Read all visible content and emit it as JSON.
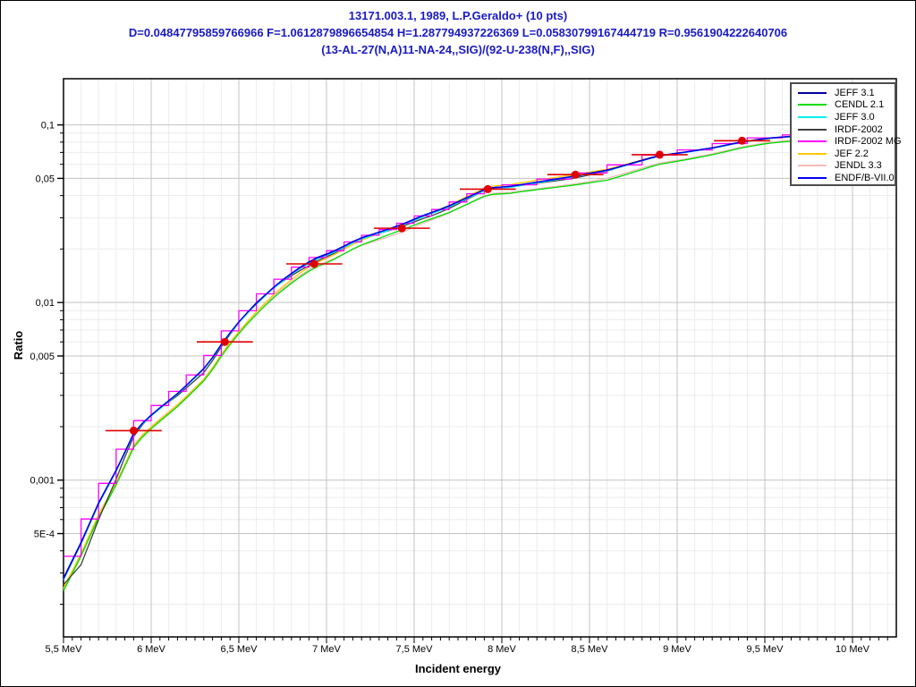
{
  "title": {
    "line1": "13171.003.1, 1989, L.P.Geraldo+ (10 pts)",
    "line2": "D=0.04847795859766966 F=1.0612879896654854 H=1.287794937226369 L=0.05830799167444719 R=0.9561904222640706",
    "line3": "(13-AL-27(N,A)11-NA-24,,SIG)/(92-U-238(N,F),,SIG)",
    "color": "#1a1ac4"
  },
  "axes": {
    "x": {
      "label": "Incident energy",
      "unit": "MeV",
      "min": 5.5,
      "max": 10.25,
      "scale": "linear",
      "tick_step": 0.05,
      "grid_step": 0.1,
      "major_ticks": [
        {
          "v": 5.5,
          "label": "5,5 MeV"
        },
        {
          "v": 6.0,
          "label": "6 MeV"
        },
        {
          "v": 6.5,
          "label": "6,5 MeV"
        },
        {
          "v": 7.0,
          "label": "7 MeV"
        },
        {
          "v": 7.5,
          "label": "7,5 MeV"
        },
        {
          "v": 8.0,
          "label": "8 MeV"
        },
        {
          "v": 8.5,
          "label": "8,5 MeV"
        },
        {
          "v": 9.0,
          "label": "9 MeV"
        },
        {
          "v": 9.5,
          "label": "9,5 MeV"
        },
        {
          "v": 10.0,
          "label": "10 MeV"
        }
      ]
    },
    "y": {
      "label": "Ratio",
      "min": 0.000131,
      "max": 0.182,
      "scale": "log",
      "major_ticks": [
        {
          "v": 0.1,
          "label": "0,1"
        },
        {
          "v": 0.05,
          "label": "0,05"
        },
        {
          "v": 0.01,
          "label": "0,01"
        },
        {
          "v": 0.005,
          "label": "0,005"
        },
        {
          "v": 0.001,
          "label": "0,001"
        },
        {
          "v": 0.0005,
          "label": "5E-4"
        }
      ]
    }
  },
  "grid": {
    "major_color": "#c3c3c3",
    "minor_color": "#ececec",
    "spine_color": "#000000"
  },
  "chart_data": {
    "type": "line",
    "title": "13171.003.1, 1989, L.P.Geraldo+ (10 pts)",
    "xlabel": "Incident energy",
    "ylabel": "Ratio",
    "xlim": [
      5.5,
      10.25
    ],
    "ylim": [
      0.000131,
      0.182
    ],
    "yscale": "log",
    "legend_position": "top-right",
    "base_curve": {
      "x": [
        5.5,
        5.6,
        5.7,
        5.81,
        5.91,
        6.01,
        6.16,
        6.32,
        6.42,
        6.52,
        6.62,
        6.72,
        6.83,
        6.93,
        7.03,
        7.18,
        7.34,
        7.43,
        7.54,
        7.69,
        7.8,
        7.92,
        8.05,
        8.2,
        8.42,
        8.61,
        8.89,
        9.07,
        9.22,
        9.37,
        9.53,
        9.74,
        9.99,
        10.25
      ],
      "y": [
        0.00027,
        0.00043,
        0.00072,
        0.00115,
        0.00187,
        0.00231,
        0.00305,
        0.00433,
        0.00607,
        0.00803,
        0.0101,
        0.0124,
        0.0149,
        0.0171,
        0.0186,
        0.0221,
        0.0249,
        0.0267,
        0.0297,
        0.0337,
        0.0379,
        0.0431,
        0.0441,
        0.0467,
        0.0507,
        0.055,
        0.066,
        0.07,
        0.074,
        0.0795,
        0.0837,
        0.0867,
        0.0897,
        0.0929
      ]
    },
    "series": [
      {
        "name": "JEFF 3.1",
        "color": "#0000A0",
        "style": "line",
        "log_offsets": [
          [
            5.5,
            0.018
          ],
          [
            6.0,
            0.012
          ],
          [
            6.5,
            0.01
          ],
          [
            7.0,
            0.015
          ],
          [
            7.5,
            0.012
          ],
          [
            8.0,
            0.01
          ],
          [
            8.5,
            0.008
          ],
          [
            9.0,
            0.006
          ],
          [
            10.25,
            0.003
          ]
        ]
      },
      {
        "name": "CENDL 2.1",
        "color": "#00DC00",
        "style": "line",
        "log_offsets": [
          [
            5.5,
            -0.055
          ],
          [
            5.75,
            -0.07
          ],
          [
            6.0,
            -0.065
          ],
          [
            6.5,
            -0.055
          ],
          [
            7.0,
            -0.035
          ],
          [
            7.4,
            -0.018
          ],
          [
            7.7,
            -0.025
          ],
          [
            8.1,
            -0.03
          ],
          [
            8.6,
            -0.05
          ],
          [
            9.0,
            -0.04
          ],
          [
            9.5,
            -0.025
          ],
          [
            10.25,
            -0.018
          ]
        ]
      },
      {
        "name": "JEFF 3.0",
        "color": "#00EFEF",
        "style": "line",
        "log_offsets": [
          [
            5.5,
            0.008
          ],
          [
            6.5,
            0.006
          ],
          [
            7.5,
            0.006
          ],
          [
            8.5,
            0.004
          ],
          [
            10.25,
            0.001
          ]
        ]
      },
      {
        "name": "IRDF-2002",
        "color": "#3F3F3F",
        "style": "line",
        "log_offsets": [
          [
            5.5,
            -0.02
          ],
          [
            5.6,
            -0.11
          ],
          [
            5.7,
            -0.08
          ],
          [
            5.85,
            -0.015
          ],
          [
            6.0,
            0.012
          ],
          [
            6.3,
            -0.012
          ],
          [
            6.6,
            0.015
          ],
          [
            6.9,
            -0.008
          ],
          [
            7.2,
            0.01
          ],
          [
            7.6,
            -0.006
          ],
          [
            8.0,
            0.008
          ],
          [
            8.4,
            -0.004
          ],
          [
            8.8,
            0.008
          ],
          [
            9.2,
            0.002
          ],
          [
            10.25,
            0.006
          ]
        ]
      },
      {
        "name": "IRDF-2002 MG",
        "color": "#FF00FF",
        "style": "histogram",
        "log_offsets": [
          [
            5.5,
            0.04
          ],
          [
            6.0,
            0.025
          ],
          [
            6.5,
            0.02
          ],
          [
            7.0,
            0.012
          ],
          [
            8.0,
            0.01
          ],
          [
            10.25,
            0.008
          ]
        ]
      },
      {
        "name": "JEF 2.2",
        "color": "#FFC800",
        "style": "line",
        "log_offsets": [
          [
            5.5,
            -0.04
          ],
          [
            5.8,
            -0.06
          ],
          [
            6.1,
            -0.055
          ],
          [
            6.5,
            -0.045
          ],
          [
            6.9,
            -0.015
          ],
          [
            7.3,
            0.005
          ],
          [
            7.8,
            0.018
          ],
          [
            8.2,
            0.02
          ],
          [
            8.7,
            0.01
          ],
          [
            9.3,
            0.002
          ],
          [
            10.25,
            -0.003
          ]
        ]
      },
      {
        "name": "JENDL 3.3",
        "color": "#F6BBBB",
        "style": "line",
        "log_offsets": [
          [
            5.5,
            -0.045
          ],
          [
            5.8,
            -0.055
          ],
          [
            6.2,
            -0.05
          ],
          [
            6.6,
            -0.04
          ],
          [
            7.0,
            -0.028
          ],
          [
            7.5,
            -0.032
          ],
          [
            8.0,
            -0.022
          ],
          [
            8.5,
            -0.04
          ],
          [
            9.0,
            -0.035
          ],
          [
            9.5,
            -0.02
          ],
          [
            10.25,
            -0.012
          ]
        ]
      },
      {
        "name": "ENDF/B-VII.0",
        "color": "#0000F0",
        "style": "line",
        "log_offsets": [
          [
            5.5,
            0.012
          ],
          [
            6.5,
            0.01
          ],
          [
            7.5,
            0.014
          ],
          [
            8.5,
            0.006
          ],
          [
            10.25,
            0.002
          ]
        ]
      }
    ],
    "experimental": {
      "name": "L.P.Geraldo+ 1989 (13171.003.1)",
      "color": "#E00000",
      "marker": "filled-circle",
      "xerr_mev": 0.16,
      "points": [
        {
          "e": 5.9,
          "r": 0.0019
        },
        {
          "e": 6.42,
          "r": 0.006
        },
        {
          "e": 6.93,
          "r": 0.0165
        },
        {
          "e": 7.43,
          "r": 0.0262
        },
        {
          "e": 7.92,
          "r": 0.0435
        },
        {
          "e": 8.42,
          "r": 0.0525
        },
        {
          "e": 8.9,
          "r": 0.068
        },
        {
          "e": 9.37,
          "r": 0.0815
        }
      ]
    }
  },
  "legend": {
    "border_color": "#4d4d4d",
    "background": "#ffffff"
  }
}
